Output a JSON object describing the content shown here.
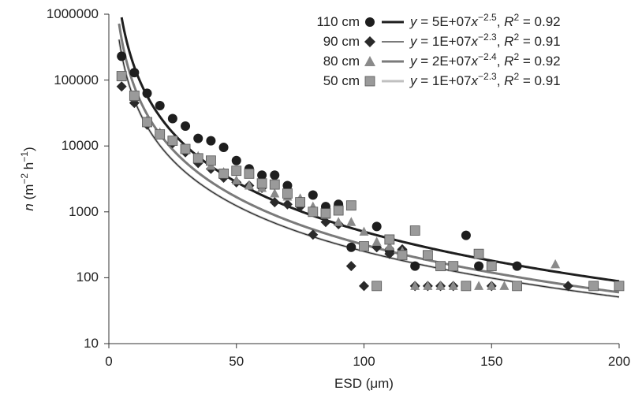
{
  "chart_data": {
    "type": "scatter",
    "xlabel": "ESD (μm)",
    "ylabel_parts": {
      "var": "n",
      "unit_open": " (m",
      "exp1": "−2",
      "mid": " h",
      "exp2": "−1",
      "close": ")"
    },
    "xlim": [
      0,
      200
    ],
    "ylim": [
      10,
      1000000
    ],
    "yscale": "log",
    "grid": false,
    "legend_position": "top-right",
    "x_ticks": [
      "0",
      "50",
      "100",
      "150",
      "200"
    ],
    "y_ticks": [
      "10",
      "100",
      "1000",
      "10000",
      "100000",
      "1000000"
    ],
    "series": [
      {
        "name": "110 cm",
        "marker": "circle",
        "marker_color": "#1e1e1e",
        "fit_color": "#1e1e1e",
        "fit_width": 3,
        "fit_a": 50000000,
        "fit_b": -2.5,
        "equation": {
          "coef": "5E+07",
          "exp": "−2.5",
          "r2": "0.92"
        },
        "points": [
          [
            5,
            230000
          ],
          [
            10,
            130000
          ],
          [
            15,
            63000
          ],
          [
            20,
            41000
          ],
          [
            25,
            26000
          ],
          [
            30,
            20000
          ],
          [
            35,
            13000
          ],
          [
            40,
            12000
          ],
          [
            45,
            9500
          ],
          [
            50,
            6000
          ],
          [
            55,
            4500
          ],
          [
            60,
            3600
          ],
          [
            65,
            3600
          ],
          [
            70,
            2500
          ],
          [
            80,
            1800
          ],
          [
            85,
            1200
          ],
          [
            90,
            1300
          ],
          [
            95,
            290
          ],
          [
            105,
            600
          ],
          [
            110,
            260
          ],
          [
            120,
            150
          ],
          [
            140,
            440
          ],
          [
            145,
            150
          ],
          [
            150,
            150
          ],
          [
            160,
            150
          ]
        ]
      },
      {
        "name": "90 cm",
        "marker": "diamond",
        "marker_color": "#2a2a2a",
        "fit_color": "#2a2a2a",
        "fit_width": 1.2,
        "fit_a": 10000000,
        "fit_b": -2.3,
        "equation": {
          "coef": "1E+07",
          "exp": "−2.3",
          "r2": "0.91"
        },
        "points": [
          [
            5,
            80000
          ],
          [
            10,
            45000
          ],
          [
            15,
            21000
          ],
          [
            20,
            15000
          ],
          [
            25,
            11000
          ],
          [
            30,
            8000
          ],
          [
            35,
            5500
          ],
          [
            40,
            4500
          ],
          [
            45,
            3300
          ],
          [
            50,
            2800
          ],
          [
            55,
            2500
          ],
          [
            60,
            2300
          ],
          [
            65,
            1400
          ],
          [
            70,
            1300
          ],
          [
            75,
            1200
          ],
          [
            80,
            450
          ],
          [
            85,
            700
          ],
          [
            90,
            650
          ],
          [
            95,
            150
          ],
          [
            100,
            75
          ],
          [
            105,
            290
          ],
          [
            110,
            230
          ],
          [
            115,
            270
          ],
          [
            120,
            75
          ],
          [
            125,
            75
          ],
          [
            130,
            75
          ],
          [
            135,
            75
          ],
          [
            150,
            75
          ],
          [
            180,
            75
          ]
        ]
      },
      {
        "name": "80 cm",
        "marker": "triangle",
        "marker_color": "#8a8a8a",
        "fit_color": "#7a7a7a",
        "fit_width": 3,
        "fit_a": 20000000,
        "fit_b": -2.4,
        "equation": {
          "coef": "2E+07",
          "exp": "−2.4",
          "r2": "0.92"
        },
        "points": [
          [
            5,
            110000
          ],
          [
            10,
            55000
          ],
          [
            15,
            25000
          ],
          [
            20,
            16000
          ],
          [
            25,
            12000
          ],
          [
            30,
            9000
          ],
          [
            35,
            7000
          ],
          [
            40,
            5000
          ],
          [
            45,
            4000
          ],
          [
            50,
            3000
          ],
          [
            55,
            2500
          ],
          [
            60,
            2300
          ],
          [
            65,
            1900
          ],
          [
            70,
            1700
          ],
          [
            75,
            1600
          ],
          [
            80,
            1200
          ],
          [
            85,
            900
          ],
          [
            90,
            700
          ],
          [
            95,
            700
          ],
          [
            100,
            500
          ],
          [
            105,
            350
          ],
          [
            110,
            300
          ],
          [
            115,
            250
          ],
          [
            120,
            75
          ],
          [
            125,
            75
          ],
          [
            130,
            75
          ],
          [
            135,
            75
          ],
          [
            140,
            75
          ],
          [
            145,
            75
          ],
          [
            150,
            75
          ],
          [
            155,
            75
          ],
          [
            175,
            160
          ]
        ]
      },
      {
        "name": "50 cm",
        "marker": "square",
        "marker_color": "#9a9a9a",
        "fit_color": "#c0c0c0",
        "fit_width": 3,
        "fit_a": 10000000,
        "fit_b": -2.3,
        "equation": {
          "coef": "1E+07",
          "exp": "−2.3",
          "r2": "0.91"
        },
        "points": [
          [
            5,
            115000
          ],
          [
            10,
            58000
          ],
          [
            15,
            23000
          ],
          [
            20,
            15000
          ],
          [
            25,
            12000
          ],
          [
            30,
            9000
          ],
          [
            35,
            6500
          ],
          [
            40,
            6000
          ],
          [
            45,
            3800
          ],
          [
            50,
            4200
          ],
          [
            55,
            3800
          ],
          [
            60,
            2700
          ],
          [
            65,
            2600
          ],
          [
            70,
            1900
          ],
          [
            75,
            1400
          ],
          [
            80,
            1000
          ],
          [
            85,
            950
          ],
          [
            90,
            1050
          ],
          [
            95,
            1250
          ],
          [
            100,
            300
          ],
          [
            105,
            75
          ],
          [
            110,
            380
          ],
          [
            115,
            220
          ],
          [
            120,
            520
          ],
          [
            125,
            220
          ],
          [
            130,
            150
          ],
          [
            135,
            150
          ],
          [
            140,
            75
          ],
          [
            145,
            230
          ],
          [
            150,
            150
          ],
          [
            160,
            75
          ],
          [
            190,
            75
          ],
          [
            200,
            75
          ]
        ]
      }
    ]
  }
}
